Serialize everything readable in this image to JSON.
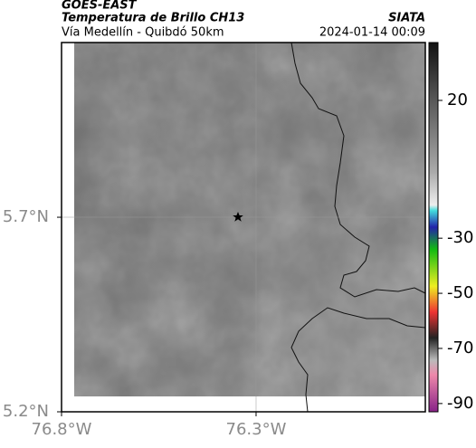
{
  "header": {
    "satellite": "GOES-EAST",
    "product": "Temperatura de Brillo CH13",
    "region": "Vía Medellín - Quibdó 50km",
    "source": "SIATA",
    "timestamp": "2024-01-14 00:09"
  },
  "map": {
    "xlim": [
      -76.8,
      -75.865
    ],
    "ylim": [
      5.2,
      6.149
    ],
    "xticks": [
      {
        "value": -76.8,
        "label": "76.8°W"
      },
      {
        "value": -76.3,
        "label": "76.3°W"
      }
    ],
    "yticks": [
      {
        "value": 5.7,
        "label": "5.7°N"
      },
      {
        "value": 5.2,
        "label": "5.2°N"
      }
    ],
    "grid": true
  },
  "colorbar": {
    "lim": [
      -93,
      41
    ],
    "ticks": [
      20,
      -30,
      -50,
      -70,
      -90
    ]
  }
}
